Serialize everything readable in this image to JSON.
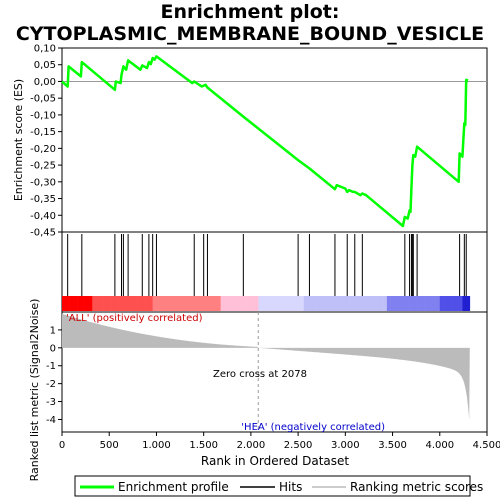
{
  "chart_data": {
    "type": "line",
    "title_line1": "Enrichment plot:",
    "title_line2": "CYTOPLASMIC_MEMBRANE_BOUND_VESICLE",
    "top_panel": {
      "ylabel": "Enrichment score (ES)",
      "ylim": [
        -0.45,
        0.1
      ],
      "yticks": [
        "0,10",
        "0,05",
        "0,00",
        "-0,05",
        "-0,10",
        "-0,15",
        "-0,20",
        "-0,25",
        "-0,30",
        "-0,35",
        "-0,40",
        "-0,45"
      ],
      "ytick_values": [
        0.1,
        0.05,
        0.0,
        -0.05,
        -0.1,
        -0.15,
        -0.2,
        -0.25,
        -0.3,
        -0.35,
        -0.4,
        -0.45
      ],
      "series_name": "Enrichment profile",
      "color": "#00ff00",
      "points": [
        [
          0,
          0.0
        ],
        [
          60,
          -0.015
        ],
        [
          70,
          0.045
        ],
        [
          200,
          0.015
        ],
        [
          210,
          0.058
        ],
        [
          560,
          -0.025
        ],
        [
          570,
          0.0
        ],
        [
          620,
          -0.005
        ],
        [
          630,
          0.02
        ],
        [
          650,
          0.045
        ],
        [
          680,
          0.035
        ],
        [
          700,
          0.063
        ],
        [
          830,
          0.035
        ],
        [
          850,
          0.048
        ],
        [
          900,
          0.04
        ],
        [
          920,
          0.058
        ],
        [
          940,
          0.052
        ],
        [
          960,
          0.07
        ],
        [
          980,
          0.065
        ],
        [
          1000,
          0.075
        ],
        [
          1380,
          -0.005
        ],
        [
          1400,
          0.0
        ],
        [
          1480,
          -0.015
        ],
        [
          1520,
          -0.01
        ],
        [
          1540,
          -0.018
        ],
        [
          1920,
          -0.105
        ],
        [
          2500,
          -0.235
        ],
        [
          2620,
          -0.26
        ],
        [
          2890,
          -0.322
        ],
        [
          2910,
          -0.31
        ],
        [
          3000,
          -0.32
        ],
        [
          3020,
          -0.33
        ],
        [
          3040,
          -0.325
        ],
        [
          3080,
          -0.33
        ],
        [
          3100,
          -0.33
        ],
        [
          3160,
          -0.34
        ],
        [
          3180,
          -0.335
        ],
        [
          3220,
          -0.34
        ],
        [
          3610,
          -0.432
        ],
        [
          3630,
          -0.405
        ],
        [
          3660,
          -0.41
        ],
        [
          3680,
          -0.385
        ],
        [
          3690,
          -0.39
        ],
        [
          3700,
          -0.32
        ],
        [
          3710,
          -0.25
        ],
        [
          3720,
          -0.22
        ],
        [
          3740,
          -0.225
        ],
        [
          3760,
          -0.195
        ],
        [
          4200,
          -0.3
        ],
        [
          4210,
          -0.215
        ],
        [
          4240,
          -0.225
        ],
        [
          4260,
          -0.125
        ],
        [
          4270,
          -0.13
        ],
        [
          4280,
          0.005
        ],
        [
          4300,
          0.003
        ]
      ]
    },
    "hits_panel": {
      "hit_positions": [
        60,
        210,
        560,
        630,
        650,
        700,
        850,
        920,
        960,
        1000,
        1400,
        1500,
        1540,
        1920,
        2500,
        2620,
        2890,
        3020,
        3100,
        3180,
        3630,
        3680,
        3700,
        3710,
        3720,
        3760,
        4210,
        4260,
        4280
      ]
    },
    "bottom_panel": {
      "ylabel": "Ranked list metric (Signal2Noise)",
      "ylim": [
        -4.7,
        2.0
      ],
      "yticks": [
        "1",
        "0",
        "-1",
        "-2",
        "-3",
        "-4"
      ],
      "ytick_values": [
        1,
        0,
        -1,
        -2,
        -3,
        -4
      ],
      "zero_cross_label": "Zero cross at 2078",
      "zero_cross": 2078,
      "pos_label": "'ALL' (positively correlated)",
      "neg_label": "'HEA' (negatively correlated)"
    },
    "xlabel": "Rank in Ordered Dataset",
    "xlim": [
      0,
      4500
    ],
    "xticks": [
      "0",
      "500",
      "1.000",
      "1.500",
      "2.000",
      "2.500",
      "3.000",
      "3.500",
      "4.000",
      "4.500"
    ],
    "xtick_values": [
      0,
      500,
      1000,
      1500,
      2000,
      2500,
      3000,
      3500,
      4000,
      4500
    ],
    "n_genes": 4318,
    "legend": {
      "items": [
        {
          "label": "Enrichment profile",
          "color": "#00ff00"
        },
        {
          "label": "Hits",
          "color": "#000000"
        },
        {
          "label": "Ranking metric scores",
          "color": "#bbbbbb"
        }
      ]
    }
  }
}
